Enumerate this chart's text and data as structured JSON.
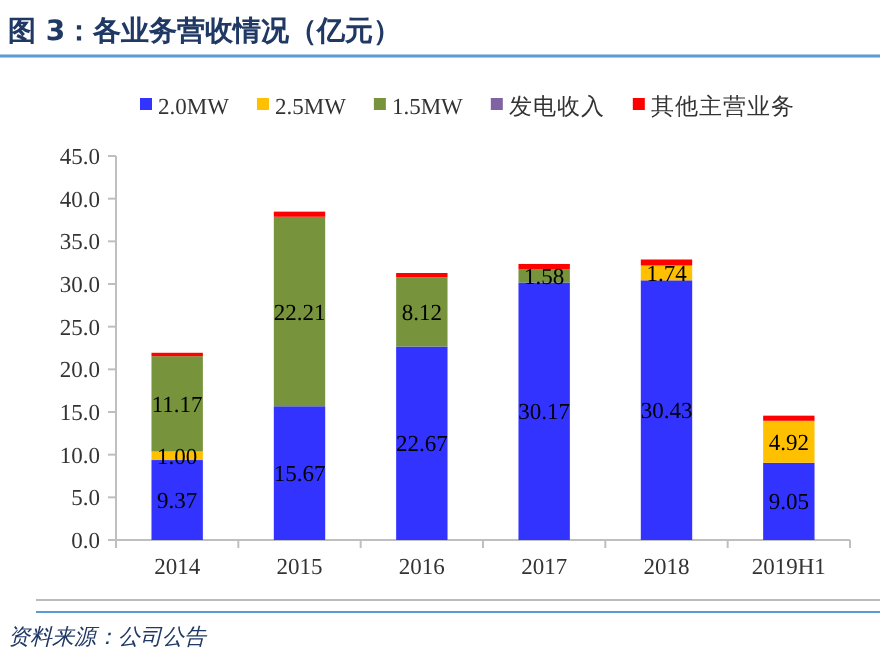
{
  "chart_data": {
    "type": "bar",
    "stacked": true,
    "title": "图 3：各业务营收情况（亿元）",
    "categories": [
      "2014",
      "2015",
      "2016",
      "2017",
      "2018",
      "2019H1"
    ],
    "series": [
      {
        "name": "2.0MW",
        "color": "#3333ff",
        "values": [
          9.37,
          15.67,
          22.67,
          30.17,
          30.43,
          9.05
        ],
        "value_labels": [
          "9.37",
          "15.67",
          "22.67",
          "30.17",
          "30.43",
          "9.05"
        ]
      },
      {
        "name": "2.5MW",
        "color": "#ffc000",
        "values": [
          1.0,
          0,
          0,
          0,
          1.74,
          4.92
        ],
        "value_labels": [
          "1.00",
          null,
          null,
          null,
          "1.74",
          "4.92"
        ]
      },
      {
        "name": "1.5MW",
        "color": "#77933c",
        "values": [
          11.17,
          22.21,
          8.12,
          1.58,
          0,
          0
        ],
        "value_labels": [
          "11.17",
          "22.21",
          "8.12",
          "1.58",
          null,
          null
        ]
      },
      {
        "name": "发电收入",
        "color": "#8064a2",
        "values": [
          0,
          0,
          0,
          0,
          0,
          0
        ]
      },
      {
        "name": "其他主营业务",
        "color": "#ff0000",
        "values": [
          0.4,
          0.6,
          0.5,
          0.6,
          0.7,
          0.6
        ]
      }
    ],
    "ylim": [
      0,
      45
    ],
    "yticks": [
      {
        "value": 0,
        "label": "0.0"
      },
      {
        "value": 5,
        "label": "5.0"
      },
      {
        "value": 10,
        "label": "10.0"
      },
      {
        "value": 15,
        "label": "15.0"
      },
      {
        "value": 20,
        "label": "20.0"
      },
      {
        "value": 25,
        "label": "25.0"
      },
      {
        "value": 30,
        "label": "30.0"
      },
      {
        "value": 35,
        "label": "35.0"
      },
      {
        "value": 40,
        "label": "40.0"
      },
      {
        "value": 45,
        "label": "45.0"
      }
    ],
    "legend": "top",
    "grid": false,
    "annotations": [
      "资料来源：公司公告"
    ]
  }
}
